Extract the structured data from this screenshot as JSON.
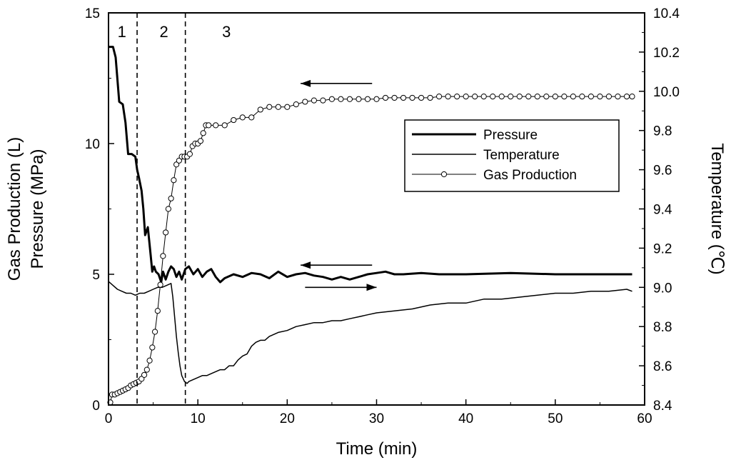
{
  "chart_data": {
    "type": "line",
    "xlabel": "Time (min)",
    "ylabel_lines": [
      "Gas Production (L)",
      "Pressure (MPa)"
    ],
    "y2label": "Temperature (℃)",
    "xlim": [
      0,
      60
    ],
    "ylim": [
      0,
      15
    ],
    "y2lim": [
      8.4,
      10.4
    ],
    "xticks": [
      0,
      10,
      20,
      30,
      40,
      50,
      60
    ],
    "yticks": [
      0,
      5,
      10,
      15
    ],
    "y2ticks": [
      8.4,
      8.6,
      8.8,
      9.0,
      9.2,
      9.4,
      9.6,
      9.8,
      10.0,
      10.2,
      10.4
    ],
    "regions": [
      {
        "label": "1",
        "x": 1.5
      },
      {
        "label": "2",
        "x": 6.2
      },
      {
        "label": "3",
        "x": 13.2
      }
    ],
    "region_boundaries": [
      3.2,
      8.6
    ],
    "series": [
      {
        "name": "Pressure",
        "axis": "left",
        "style": "thick",
        "x": [
          0,
          0.5,
          0.8,
          1.2,
          1.6,
          1.9,
          2.2,
          2.6,
          3.0,
          3.2,
          3.4,
          3.7,
          3.9,
          4.1,
          4.4,
          4.7,
          4.9,
          5.1,
          5.3,
          5.6,
          5.9,
          6.1,
          6.4,
          6.7,
          7.0,
          7.3,
          7.6,
          7.9,
          8.2,
          8.6,
          9.0,
          9.5,
          10.0,
          10.5,
          11.0,
          11.5,
          12.0,
          12.5,
          13.0,
          14.0,
          15.0,
          16.0,
          17.0,
          18.0,
          19.0,
          20.0,
          21.0,
          22.0,
          23.0,
          24.0,
          25.0,
          26.0,
          27.0,
          28.0,
          29.0,
          30.0,
          31.0,
          32.0,
          33.0,
          35.0,
          37.0,
          40.0,
          45.0,
          50.0,
          55.0,
          58.6
        ],
        "y": [
          13.7,
          13.7,
          13.3,
          11.6,
          11.5,
          10.8,
          9.6,
          9.6,
          9.5,
          9.0,
          8.7,
          8.2,
          7.5,
          6.5,
          6.8,
          5.8,
          5.1,
          5.3,
          5.1,
          5.0,
          4.7,
          5.1,
          4.8,
          5.1,
          5.3,
          5.2,
          4.9,
          5.1,
          4.8,
          5.2,
          5.3,
          5.0,
          5.2,
          4.9,
          5.1,
          5.2,
          4.9,
          4.7,
          4.85,
          5.0,
          4.9,
          5.05,
          5.0,
          4.85,
          5.1,
          4.9,
          5.0,
          5.05,
          4.95,
          4.9,
          4.8,
          4.9,
          4.8,
          4.9,
          5.0,
          5.05,
          5.1,
          5.0,
          5.0,
          5.05,
          5.0,
          5.0,
          5.05,
          5.0,
          5.0,
          5.0
        ]
      },
      {
        "name": "Temperature",
        "axis": "right",
        "style": "thin",
        "x": [
          0,
          0.5,
          1.0,
          1.5,
          2.0,
          2.5,
          3.0,
          3.5,
          4.0,
          4.5,
          5.0,
          5.5,
          6.0,
          6.5,
          7.0,
          7.2,
          7.4,
          7.6,
          7.8,
          8.0,
          8.2,
          8.5,
          8.8,
          9.0,
          9.5,
          10.0,
          10.5,
          11.0,
          11.5,
          12.0,
          12.5,
          13.0,
          13.5,
          14.0,
          14.5,
          15.0,
          15.5,
          16.0,
          16.5,
          17.0,
          17.5,
          18.0,
          18.5,
          19.0,
          20.0,
          21.0,
          22.0,
          23.0,
          24.0,
          25.0,
          26.0,
          27.0,
          28.0,
          29.0,
          30.0,
          32.0,
          34.0,
          36.0,
          38.0,
          40.0,
          42.0,
          44.0,
          46.0,
          48.0,
          50.0,
          52.0,
          54.0,
          56.0,
          58.0,
          58.6
        ],
        "y": [
          9.03,
          9.01,
          8.99,
          8.98,
          8.97,
          8.97,
          8.96,
          8.97,
          8.97,
          8.98,
          8.99,
          9.0,
          9.0,
          9.01,
          9.02,
          8.95,
          8.85,
          8.75,
          8.67,
          8.6,
          8.55,
          8.52,
          8.51,
          8.52,
          8.53,
          8.54,
          8.55,
          8.55,
          8.56,
          8.57,
          8.58,
          8.58,
          8.6,
          8.6,
          8.63,
          8.65,
          8.66,
          8.7,
          8.72,
          8.73,
          8.73,
          8.75,
          8.76,
          8.77,
          8.78,
          8.8,
          8.81,
          8.82,
          8.82,
          8.83,
          8.83,
          8.84,
          8.85,
          8.86,
          8.87,
          8.88,
          8.89,
          8.91,
          8.92,
          8.92,
          8.94,
          8.94,
          8.95,
          8.96,
          8.97,
          8.97,
          8.98,
          8.98,
          8.99,
          8.98
        ]
      },
      {
        "name": "Gas Production",
        "axis": "left",
        "style": "circles",
        "x": [
          0.2,
          0.4,
          0.7,
          1.0,
          1.3,
          1.6,
          1.9,
          2.2,
          2.5,
          2.8,
          3.1,
          3.4,
          3.7,
          4.0,
          4.3,
          4.6,
          4.9,
          5.2,
          5.5,
          5.8,
          6.1,
          6.4,
          6.7,
          7.0,
          7.3,
          7.6,
          7.9,
          8.2,
          8.5,
          8.8,
          9.1,
          9.4,
          9.7,
          10.0,
          10.3,
          10.6,
          10.9,
          11.2,
          12.0,
          13.0,
          14.0,
          15.0,
          16.0,
          17.0,
          18.0,
          19.0,
          20.0,
          21.0,
          22.0,
          23.0,
          24.0,
          25.0,
          26.0,
          27.0,
          28.0,
          29.0,
          30.0,
          31.0,
          32.0,
          33.0,
          34.0,
          35.0,
          36.0,
          37.0,
          38.0,
          39.0,
          40.0,
          41.0,
          42.0,
          43.0,
          44.0,
          45.0,
          46.0,
          47.0,
          48.0,
          49.0,
          50.0,
          51.0,
          52.0,
          53.0,
          54.0,
          55.0,
          56.0,
          57.0,
          58.0,
          58.6
        ],
        "y": [
          0.1,
          0.4,
          0.4,
          0.45,
          0.5,
          0.55,
          0.6,
          0.65,
          0.75,
          0.8,
          0.85,
          0.9,
          1.0,
          1.15,
          1.35,
          1.7,
          2.2,
          2.8,
          3.6,
          4.6,
          5.7,
          6.6,
          7.5,
          7.9,
          8.6,
          9.2,
          9.35,
          9.5,
          9.5,
          9.5,
          9.6,
          9.9,
          10.0,
          10.0,
          10.1,
          10.4,
          10.7,
          10.7,
          10.7,
          10.7,
          10.9,
          11.0,
          11.0,
          11.3,
          11.4,
          11.4,
          11.4,
          11.5,
          11.6,
          11.65,
          11.65,
          11.7,
          11.7,
          11.7,
          11.7,
          11.7,
          11.7,
          11.75,
          11.75,
          11.75,
          11.75,
          11.75,
          11.75,
          11.8,
          11.8,
          11.8,
          11.8,
          11.8,
          11.8,
          11.8,
          11.8,
          11.8,
          11.8,
          11.8,
          11.8,
          11.8,
          11.8,
          11.8,
          11.8,
          11.8,
          11.8,
          11.8,
          11.8,
          11.8,
          11.8,
          11.8
        ]
      }
    ],
    "arrows": [
      {
        "target": "Gas Production",
        "direction": "left",
        "x_start": 29.5,
        "x_end": 21.5,
        "y": 12.3,
        "axis": "left"
      },
      {
        "target": "Pressure",
        "direction": "left",
        "x_start": 29.5,
        "x_end": 21.5,
        "y": 5.35,
        "axis": "left"
      },
      {
        "target": "Temperature",
        "direction": "right",
        "x_start": 22.0,
        "x_end": 30.0,
        "y": 9.0,
        "axis": "right"
      }
    ],
    "legend": {
      "position": "right-middle",
      "entries": [
        "Pressure",
        "Temperature",
        "Gas Production"
      ]
    }
  }
}
